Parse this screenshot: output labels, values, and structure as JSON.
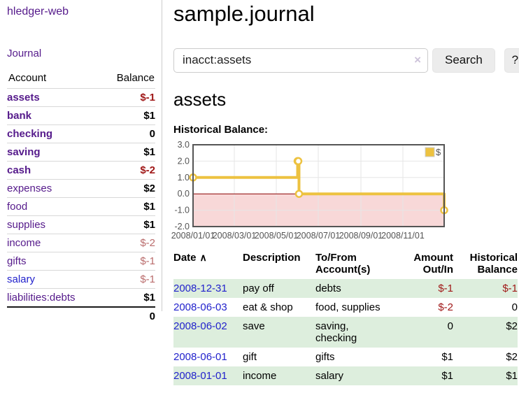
{
  "app": {
    "brand": "hledger-web"
  },
  "sidebar": {
    "nav": {
      "journal_label": "Journal"
    },
    "accounts_table": {
      "headers": {
        "account": "Account",
        "balance": "Balance"
      },
      "rows": [
        {
          "name": "assets",
          "indent": 1,
          "in_query": true,
          "balance": "$-1",
          "balance_negative": true,
          "muted": false
        },
        {
          "name": "bank",
          "indent": 2,
          "in_query": true,
          "balance": "$1",
          "balance_negative": false,
          "muted": false
        },
        {
          "name": "checking",
          "indent": 3,
          "in_query": true,
          "balance": "0",
          "balance_negative": false,
          "muted": false
        },
        {
          "name": "saving",
          "indent": 3,
          "in_query": true,
          "balance": "$1",
          "balance_negative": false,
          "muted": false
        },
        {
          "name": "cash",
          "indent": 2,
          "in_query": true,
          "balance": "$-2",
          "balance_negative": true,
          "muted": false
        },
        {
          "name": "expenses",
          "indent": 1,
          "in_query": false,
          "balance": "$2",
          "balance_negative": false,
          "muted": false
        },
        {
          "name": "food",
          "indent": 2,
          "in_query": false,
          "balance": "$1",
          "balance_negative": false,
          "muted": false
        },
        {
          "name": "supplies",
          "indent": 2,
          "in_query": false,
          "balance": "$1",
          "balance_negative": false,
          "muted": false
        },
        {
          "name": "income",
          "indent": 1,
          "in_query": false,
          "balance": "$-2",
          "balance_negative": true,
          "muted": true
        },
        {
          "name": "gifts",
          "indent": 2,
          "in_query": false,
          "balance": "$-1",
          "balance_negative": true,
          "muted": true
        },
        {
          "name": "salary",
          "indent": 2,
          "in_query": false,
          "balance": "$-1",
          "balance_negative": true,
          "muted": true,
          "link_unvisited": true
        },
        {
          "name": "liabilities:debts",
          "indent": 1,
          "in_query": false,
          "balance": "$1",
          "balance_negative": false,
          "muted": false
        }
      ],
      "total": "0"
    }
  },
  "header": {
    "title": "sample.journal"
  },
  "search": {
    "value": "inacct:assets",
    "clear_icon": "×",
    "button_label": "Search",
    "help_label": "?"
  },
  "main": {
    "account_heading": "assets",
    "chart_label": "Historical Balance:"
  },
  "chart_data": {
    "type": "line",
    "title": "Historical Balance:",
    "step": true,
    "x": [
      "2008-01-01",
      "2008-06-01",
      "2008-06-02",
      "2008-06-03",
      "2008-12-31"
    ],
    "series": [
      {
        "name": "$",
        "values": [
          1,
          2,
          2,
          0,
          -1
        ]
      }
    ],
    "xlim": [
      "2008-01-01",
      "2008-12-31"
    ],
    "ylim": [
      -2,
      3
    ],
    "yticks": [
      3,
      2,
      1,
      0,
      -1,
      -2
    ],
    "ytick_labels": [
      "3.0",
      "2.0",
      "1.0",
      "0.0",
      "-1.0",
      "-2.0"
    ],
    "xticks": [
      "2008-01-01",
      "2008-03-01",
      "2008-05-01",
      "2008-07-01",
      "2008-09-01",
      "2008-11-01"
    ],
    "xtick_labels": [
      "2008/01/01",
      "2008/03/01",
      "2008/05/01",
      "2008/07/01",
      "2008/09/01",
      "2008/11/01"
    ],
    "grid": true,
    "legend_position": "top-right",
    "legend": [
      {
        "name": "$",
        "color": "#edc240"
      }
    ],
    "negative_region_shaded": true
  },
  "register": {
    "headers": {
      "date": "Date",
      "sort_icon": "∧",
      "description": "Description",
      "accounts": "To/From Account(s)",
      "amount": "Amount Out/In",
      "balance": "Historical Balance"
    },
    "rows": [
      {
        "date": "2008-12-31",
        "description": "pay off",
        "accounts": "debts",
        "amount": "$-1",
        "amount_negative": true,
        "balance": "$-1",
        "balance_negative": true
      },
      {
        "date": "2008-06-03",
        "description": "eat & shop",
        "accounts": "food, supplies",
        "amount": "$-2",
        "amount_negative": true,
        "balance": "0",
        "balance_negative": false
      },
      {
        "date": "2008-06-02",
        "description": "save",
        "accounts": "saving,\nchecking",
        "amount": "0",
        "amount_negative": false,
        "balance": "$2",
        "balance_negative": false
      },
      {
        "date": "2008-06-01",
        "description": "gift",
        "accounts": "gifts",
        "amount": "$1",
        "amount_negative": false,
        "balance": "$2",
        "balance_negative": false
      },
      {
        "date": "2008-01-01",
        "description": "income",
        "accounts": "salary",
        "amount": "$1",
        "amount_negative": false,
        "balance": "$1",
        "balance_negative": false
      }
    ]
  },
  "colors": {
    "link_purple": "#551a8b",
    "link_blue": "#2222cc",
    "negative_red": "#a01818",
    "negative_muted": "#ba6c6c",
    "row_green": "#ddeedd",
    "chart_line": "#edc240",
    "chart_negative_fill": "#f8d8d8",
    "chart_zero_line": "#8b0000",
    "chart_grid": "#e6e6e6",
    "chart_border": "#555555",
    "button_bg": "#ececec"
  }
}
